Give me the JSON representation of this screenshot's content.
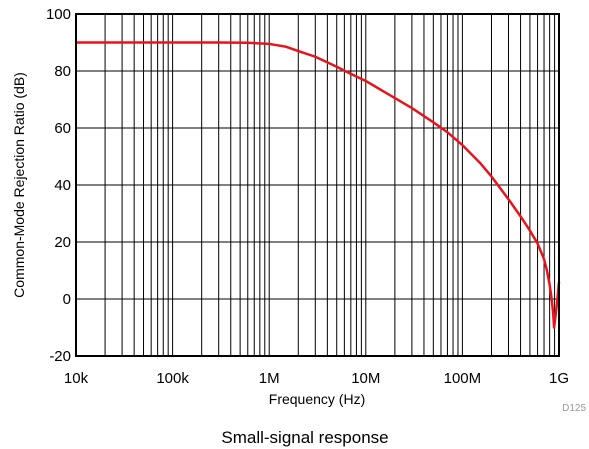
{
  "chart_data": {
    "type": "line",
    "title": "",
    "xlabel": "Frequency (Hz)",
    "ylabel": "Common-Mode Rejection Ratio (dB)",
    "xscale": "log",
    "xlim": [
      10000,
      1000000000
    ],
    "ylim": [
      -20,
      100
    ],
    "x_ticks": [
      10000,
      100000,
      1000000,
      10000000,
      100000000,
      1000000000
    ],
    "x_tick_labels": [
      "10k",
      "100k",
      "1M",
      "10M",
      "100M",
      "1G"
    ],
    "y_ticks": [
      -20,
      0,
      20,
      40,
      60,
      80,
      100
    ],
    "y_tick_labels": [
      "-20",
      "0",
      "20",
      "40",
      "60",
      "80",
      "100"
    ],
    "grid": true,
    "series": [
      {
        "color": "#e8141c",
        "x": [
          10000,
          30000,
          100000,
          300000,
          600000,
          1000000,
          1500000,
          2000000,
          3000000,
          5000000,
          7000000,
          10000000,
          20000000,
          30000000,
          50000000,
          70000000,
          100000000,
          150000000,
          200000000,
          300000000,
          400000000,
          500000000,
          600000000,
          700000000,
          750000000,
          800000000,
          840000000,
          870000000,
          890000000,
          920000000,
          950000000,
          1000000000
        ],
        "y": [
          90,
          90,
          90,
          90,
          89.9,
          89.5,
          88.5,
          87,
          85,
          81.5,
          79,
          76.5,
          70.5,
          67,
          62,
          58.5,
          54,
          48,
          43,
          35,
          29,
          24,
          19.5,
          14,
          10,
          5,
          0,
          -5,
          -10,
          -6,
          -2,
          6
        ]
      }
    ],
    "figure_id": "D125",
    "caption": "Small-signal response"
  }
}
